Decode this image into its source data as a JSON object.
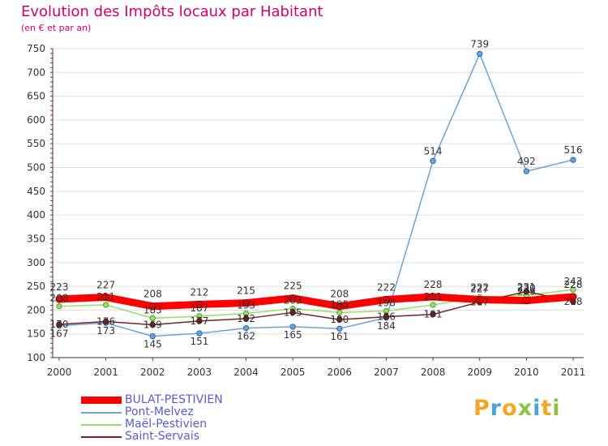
{
  "chart_data": {
    "type": "line",
    "title": "Evolution des Impôts locaux par Habitant",
    "subtitle": "(en € et par an)",
    "xlabel": "",
    "ylabel": "",
    "ylim": [
      100,
      750
    ],
    "y_ticks": [
      100,
      150,
      200,
      250,
      300,
      350,
      400,
      450,
      500,
      550,
      600,
      650,
      700,
      750
    ],
    "categories": [
      "2000",
      "2001",
      "2002",
      "2003",
      "2004",
      "2005",
      "2006",
      "2007",
      "2008",
      "2009",
      "2010",
      "2011"
    ],
    "grid": "horizontal",
    "legend_position": "bottom-left",
    "series": [
      {
        "name": "BULAT-PESTIVIEN",
        "color": "#ff0000",
        "values": [
          223,
          227,
          208,
          212,
          215,
          225,
          208,
          222,
          228,
          222,
          220,
          228
        ],
        "labels": [
          "223",
          "227",
          "208",
          "212",
          "215",
          "225",
          "208",
          "222",
          "228",
          "222",
          "220",
          "228"
        ]
      },
      {
        "name": "Pont-Melvez",
        "color": "#6aa3d8",
        "values": [
          167,
          173,
          145,
          151,
          162,
          165,
          161,
          184,
          514,
          739,
          492,
          516
        ],
        "labels": [
          "167",
          "173",
          "145",
          "151",
          "162",
          "165",
          "161",
          "184",
          "514",
          "739",
          "492",
          "516"
        ]
      },
      {
        "name": "Maël-Pestivien",
        "color": "#99dd66",
        "values": [
          208,
          211,
          183,
          187,
          193,
          203,
          195,
          198,
          211,
          227,
          231,
          243
        ],
        "labels": [
          "208",
          "211",
          "183",
          "187",
          "193",
          "203",
          "195",
          "198",
          "211",
          "227",
          "231",
          "243"
        ]
      },
      {
        "name": "Saint-Servais",
        "color": "#772222",
        "values": [
          170,
          176,
          169,
          177,
          182,
          195,
          180,
          186,
          191,
          217,
          239,
          218
        ],
        "labels": [
          "170",
          "176",
          "169",
          "177",
          "182",
          "195",
          "180",
          "186",
          "191",
          "217",
          "239",
          "218"
        ]
      }
    ]
  },
  "logo": {
    "text": "Proxiti",
    "colors": [
      "#f5a623",
      "#4aa3df",
      "#f5a623",
      "#8bc34a",
      "#4aa3df",
      "#f5a623",
      "#8bc34a"
    ]
  }
}
